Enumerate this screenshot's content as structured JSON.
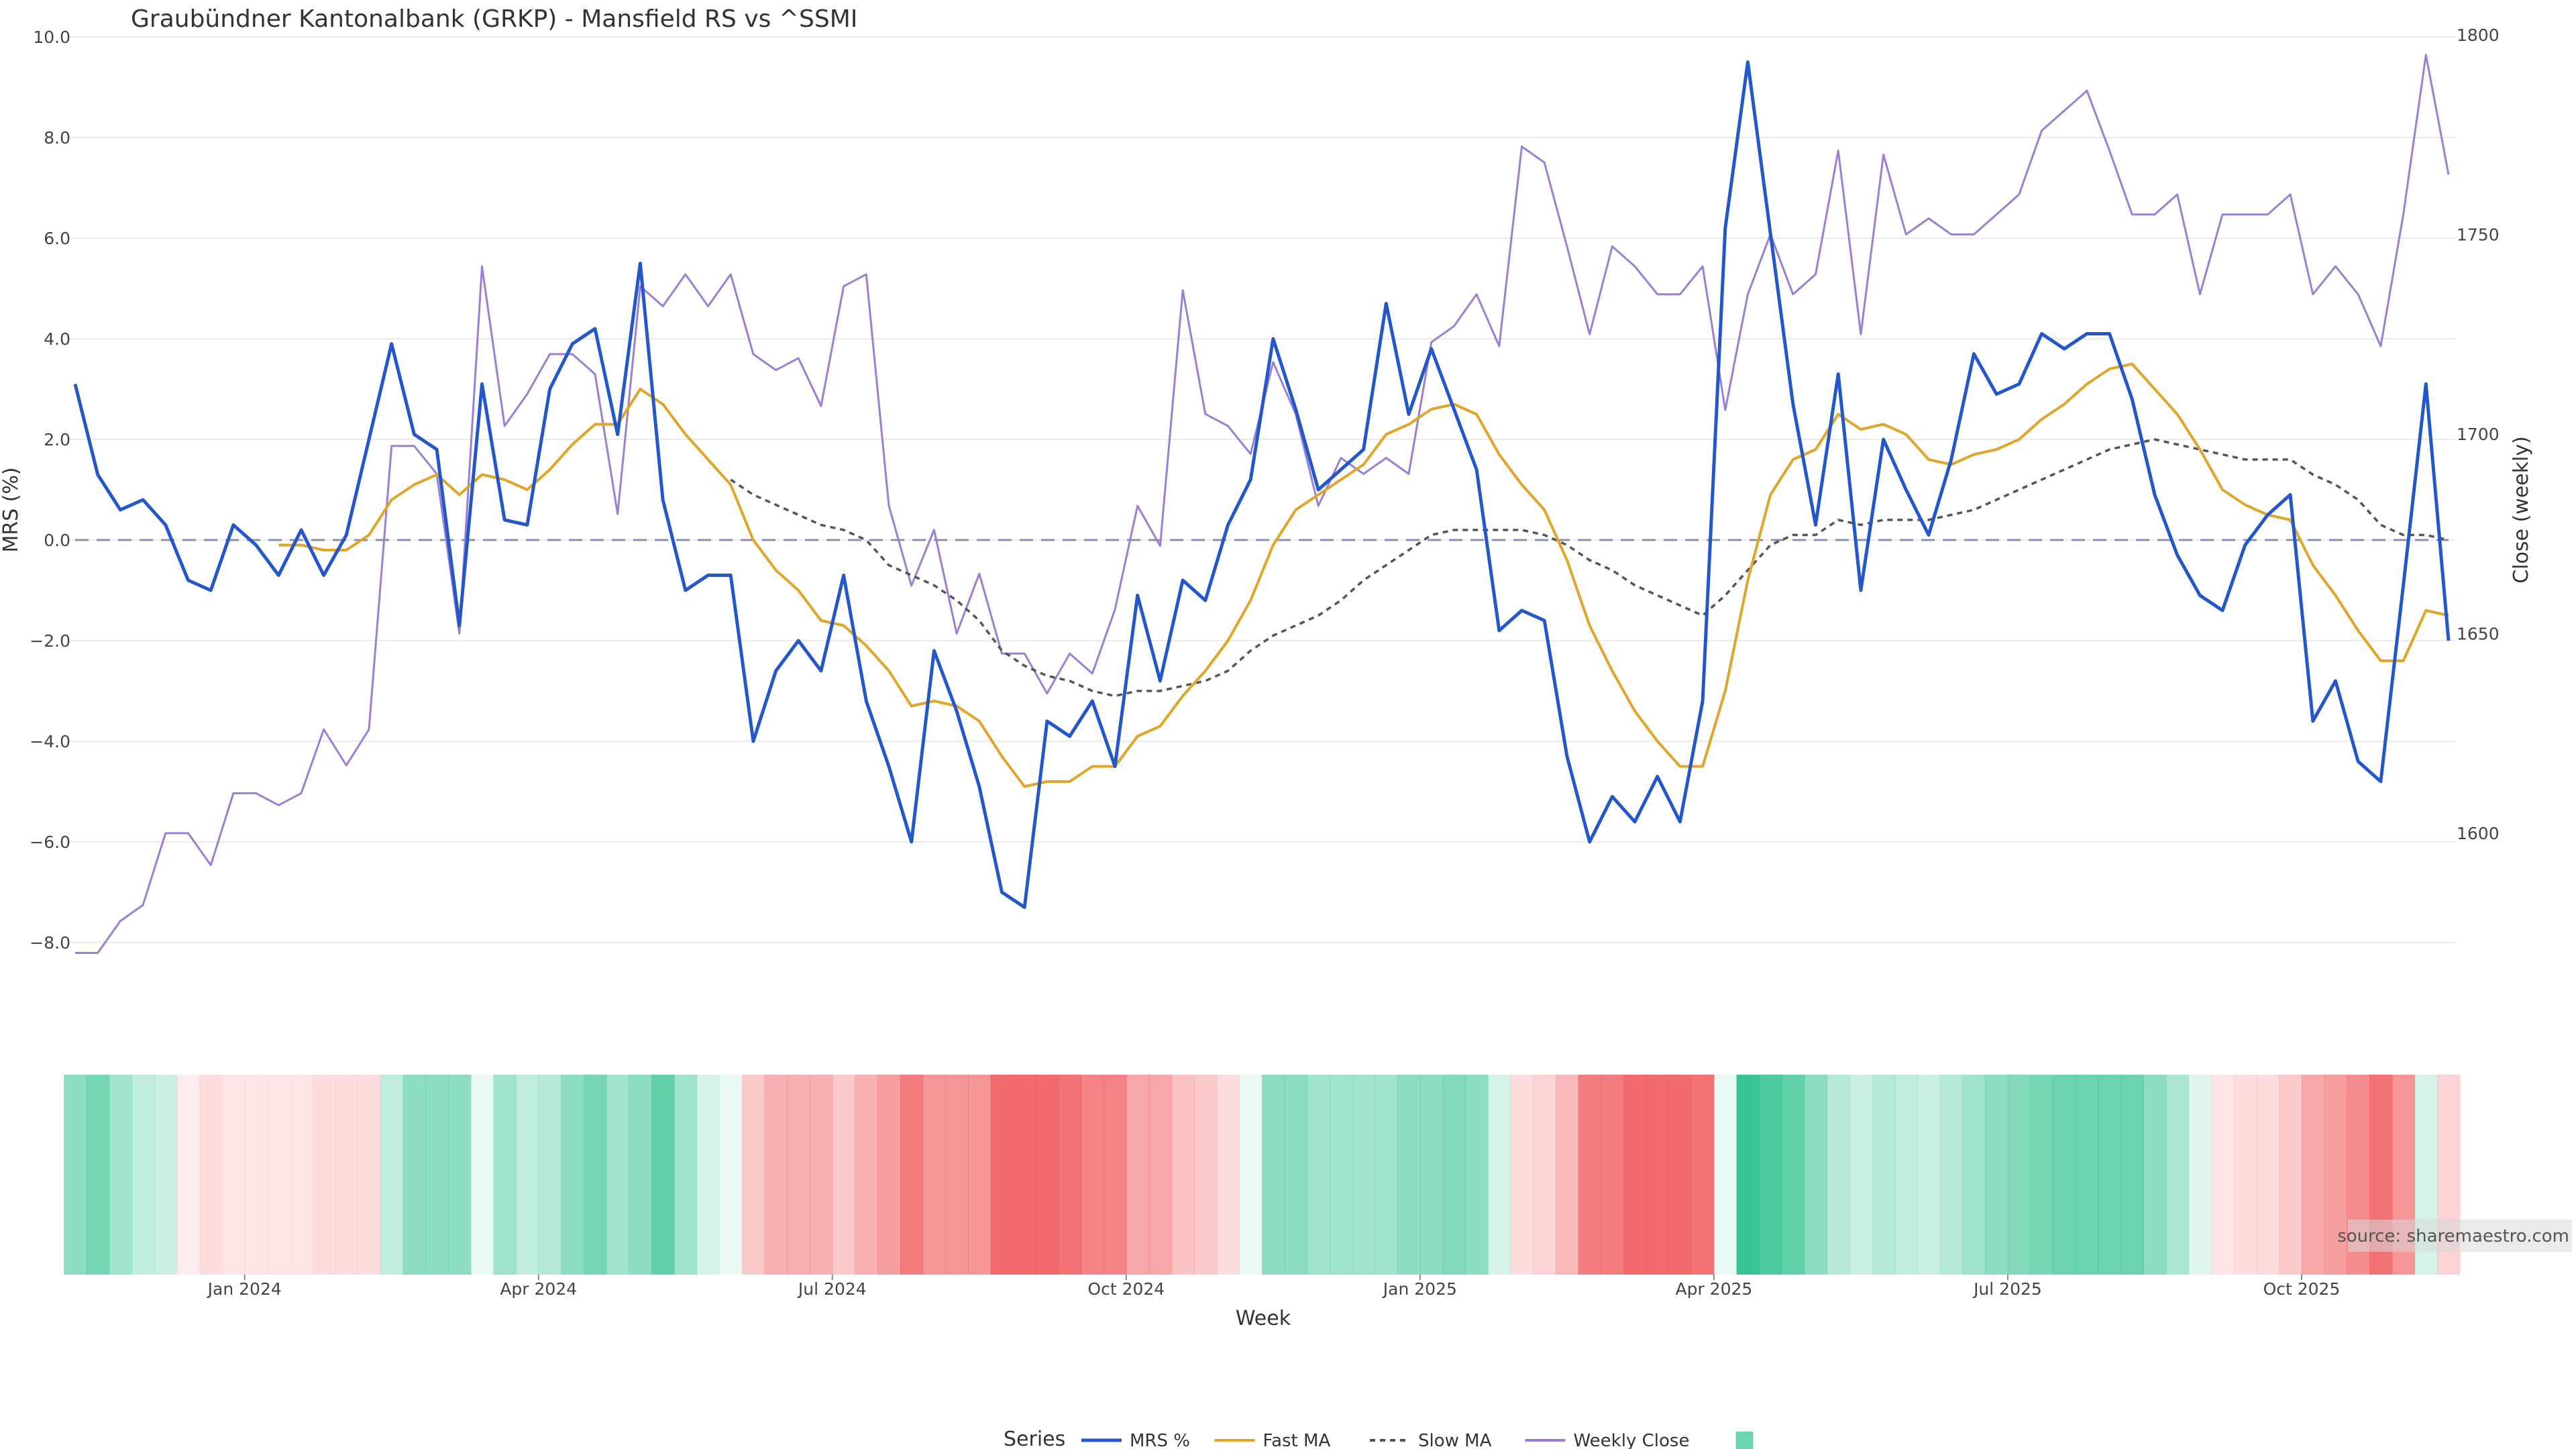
{
  "chart_data": {
    "type": "line",
    "title": "Graubündner Kantonalbank (GRKP) - Mansfield RS vs ^SSMI",
    "xlabel": "Week",
    "ylabel": "MRS (%)",
    "y2label": "Close (weekly)",
    "ylim": [
      -9.0,
      10.2
    ],
    "y_ticks": [
      "10.0",
      "8.0",
      "6.0",
      "4.0",
      "2.0",
      "0.0",
      "−2.0",
      "−4.0",
      "−6.0",
      "−8.0"
    ],
    "y2lim": [
      1560.0,
      1802.0
    ],
    "y2_ticks": [
      "1800",
      "1750",
      "1700",
      "1650",
      "1600"
    ],
    "x_ticks": [
      "Jan 2024",
      "Apr 2024",
      "Jul 2024",
      "Oct 2024",
      "Jan 2025",
      "Apr 2025",
      "Jul 2025",
      "Oct 2025"
    ],
    "zero_line": 0.0,
    "grid": true,
    "legend_title": "Series",
    "legend_position": "bottom-center",
    "source": "source: sharemaestro.com",
    "colors": {
      "mrs": "#2457c9",
      "fast_ma": "#e0a52a",
      "slow_ma": "#555555",
      "weekly_close": "#9b7fd4",
      "band_positive": "#2ec18e",
      "band_negative": "#ef5054"
    },
    "series": [
      {
        "name": "MRS %",
        "values": [
          3.1,
          1.3,
          0.6,
          0.8,
          0.3,
          -0.8,
          -1.0,
          0.3,
          -0.1,
          -0.7,
          0.2,
          -0.7,
          0.1,
          2.0,
          3.9,
          2.1,
          1.8,
          -1.7,
          3.1,
          0.4,
          0.3,
          3.0,
          3.9,
          4.2,
          2.1,
          5.5,
          0.8,
          -1.0,
          -0.7,
          -0.7,
          -4.0,
          -2.6,
          -2.0,
          -2.6,
          -0.7,
          -3.2,
          -4.5,
          -6.0,
          -2.2,
          -3.4,
          -4.9,
          -7.0,
          -7.3,
          -3.6,
          -3.9,
          -3.2,
          -4.5,
          -1.1,
          -2.8,
          -0.8,
          -1.2,
          0.3,
          1.2,
          4.0,
          2.6,
          1.0,
          1.4,
          1.8,
          4.7,
          2.5,
          3.8,
          2.6,
          1.4,
          -1.8,
          -1.4,
          -1.6,
          -4.3,
          -6.0,
          -5.1,
          -5.6,
          -4.7,
          -5.6,
          -3.2,
          6.2,
          9.5,
          6.1,
          2.7,
          0.3,
          3.3,
          -1.0,
          2.0,
          1.0,
          0.1,
          1.6,
          3.7,
          2.9,
          3.1,
          4.1,
          3.8,
          4.1,
          4.1,
          2.8,
          0.9,
          -0.3,
          -1.1,
          -1.4,
          -0.1,
          0.5,
          0.9,
          -3.6,
          -2.8,
          -4.4,
          -4.8,
          -0.9,
          3.1,
          -2.0
        ]
      },
      {
        "name": "Fast MA",
        "values": [
          null,
          null,
          null,
          null,
          null,
          null,
          null,
          null,
          null,
          -0.1,
          -0.1,
          -0.2,
          -0.2,
          0.1,
          0.8,
          1.1,
          1.3,
          0.9,
          1.3,
          1.2,
          1.0,
          1.4,
          1.9,
          2.3,
          2.3,
          3.0,
          2.7,
          2.1,
          1.6,
          1.1,
          0.0,
          -0.6,
          -1.0,
          -1.6,
          -1.7,
          -2.1,
          -2.6,
          -3.3,
          -3.2,
          -3.3,
          -3.6,
          -4.3,
          -4.9,
          -4.8,
          -4.8,
          -4.5,
          -4.5,
          -3.9,
          -3.7,
          -3.1,
          -2.6,
          -2.0,
          -1.2,
          -0.1,
          0.6,
          0.9,
          1.2,
          1.5,
          2.1,
          2.3,
          2.6,
          2.7,
          2.5,
          1.7,
          1.1,
          0.6,
          -0.4,
          -1.7,
          -2.6,
          -3.4,
          -4.0,
          -4.5,
          -4.5,
          -3.0,
          -0.8,
          0.9,
          1.6,
          1.8,
          2.5,
          2.2,
          2.3,
          2.1,
          1.6,
          1.5,
          1.7,
          1.8,
          2.0,
          2.4,
          2.7,
          3.1,
          3.4,
          3.5,
          3.0,
          2.5,
          1.8,
          1.0,
          0.7,
          0.5,
          0.4,
          -0.5,
          -1.1,
          -1.8,
          -2.4,
          -2.4,
          -1.4,
          -1.5
        ]
      },
      {
        "name": "Slow MA",
        "values": [
          null,
          null,
          null,
          null,
          null,
          null,
          null,
          null,
          null,
          null,
          null,
          null,
          null,
          null,
          null,
          null,
          null,
          null,
          null,
          null,
          null,
          null,
          null,
          null,
          null,
          null,
          null,
          null,
          null,
          1.2,
          0.9,
          0.7,
          0.5,
          0.3,
          0.2,
          0.0,
          -0.5,
          -0.7,
          -0.9,
          -1.2,
          -1.6,
          -2.2,
          -2.5,
          -2.7,
          -2.8,
          -3.0,
          -3.1,
          -3.0,
          -3.0,
          -2.9,
          -2.8,
          -2.6,
          -2.2,
          -1.9,
          -1.7,
          -1.5,
          -1.2,
          -0.8,
          -0.5,
          -0.2,
          0.1,
          0.2,
          0.2,
          0.2,
          0.2,
          0.1,
          -0.1,
          -0.4,
          -0.6,
          -0.9,
          -1.1,
          -1.3,
          -1.5,
          -1.1,
          -0.6,
          -0.1,
          0.1,
          0.1,
          0.4,
          0.3,
          0.4,
          0.4,
          0.4,
          0.5,
          0.6,
          0.8,
          1.0,
          1.2,
          1.4,
          1.6,
          1.8,
          1.9,
          2.0,
          1.9,
          1.8,
          1.7,
          1.6,
          1.6,
          1.6,
          1.3,
          1.1,
          0.8,
          0.3,
          0.1,
          0.1,
          0.0
        ]
      },
      {
        "name": "Weekly Close",
        "axis": "right",
        "values": [
          1570,
          1570,
          1578,
          1582,
          1600,
          1600,
          1592,
          1610,
          1610,
          1607,
          1610,
          1626,
          1617,
          1626,
          1697,
          1697,
          1690,
          1650,
          1742,
          1702,
          1710,
          1720,
          1720,
          1715,
          1680,
          1737,
          1732,
          1740,
          1732,
          1740,
          1720,
          1716,
          1719,
          1707,
          1737,
          1740,
          1682,
          1662,
          1676,
          1650,
          1665,
          1645,
          1645,
          1635,
          1645,
          1640,
          1656,
          1682,
          1672,
          1736,
          1705,
          1702,
          1695,
          1718,
          1705,
          1682,
          1694,
          1690,
          1694,
          1690,
          1723,
          1727,
          1735,
          1722,
          1772,
          1768,
          1747,
          1725,
          1747,
          1742,
          1735,
          1735,
          1742,
          1706,
          1735,
          1750,
          1735,
          1740,
          1771,
          1725,
          1770,
          1750,
          1754,
          1750,
          1750,
          1755,
          1760,
          1776,
          1781,
          1786,
          1771,
          1755,
          1755,
          1760,
          1735,
          1755,
          1755,
          1755,
          1760,
          1735,
          1742,
          1735,
          1722,
          1755,
          1795,
          1765
        ]
      }
    ],
    "band": {
      "name": "",
      "values": [
        0.55,
        0.65,
        0.45,
        0.3,
        0.25,
        -0.1,
        -0.2,
        -0.15,
        -0.15,
        -0.15,
        -0.15,
        -0.2,
        -0.2,
        -0.2,
        0.3,
        0.55,
        0.55,
        0.55,
        0.1,
        0.45,
        0.3,
        0.35,
        0.55,
        0.65,
        0.45,
        0.55,
        0.75,
        0.45,
        0.2,
        0.1,
        -0.3,
        -0.45,
        -0.45,
        -0.45,
        -0.3,
        -0.45,
        -0.55,
        -0.75,
        -0.6,
        -0.6,
        -0.6,
        -0.85,
        -0.85,
        -0.85,
        -0.8,
        -0.7,
        -0.7,
        -0.5,
        -0.5,
        -0.35,
        -0.3,
        -0.2,
        0.1,
        0.55,
        0.55,
        0.45,
        0.45,
        0.45,
        0.45,
        0.55,
        0.55,
        0.6,
        0.55,
        0.2,
        -0.2,
        -0.25,
        -0.4,
        -0.75,
        -0.75,
        -0.85,
        -0.85,
        -0.85,
        -0.8,
        0.05,
        0.95,
        0.85,
        0.75,
        0.55,
        0.35,
        0.25,
        0.35,
        0.3,
        0.25,
        0.35,
        0.45,
        0.55,
        0.6,
        0.65,
        0.7,
        0.7,
        0.7,
        0.7,
        0.55,
        0.4,
        0.15,
        -0.15,
        -0.2,
        -0.2,
        -0.3,
        -0.5,
        -0.55,
        -0.65,
        -0.8,
        -0.6,
        0.2,
        -0.25
      ]
    }
  }
}
